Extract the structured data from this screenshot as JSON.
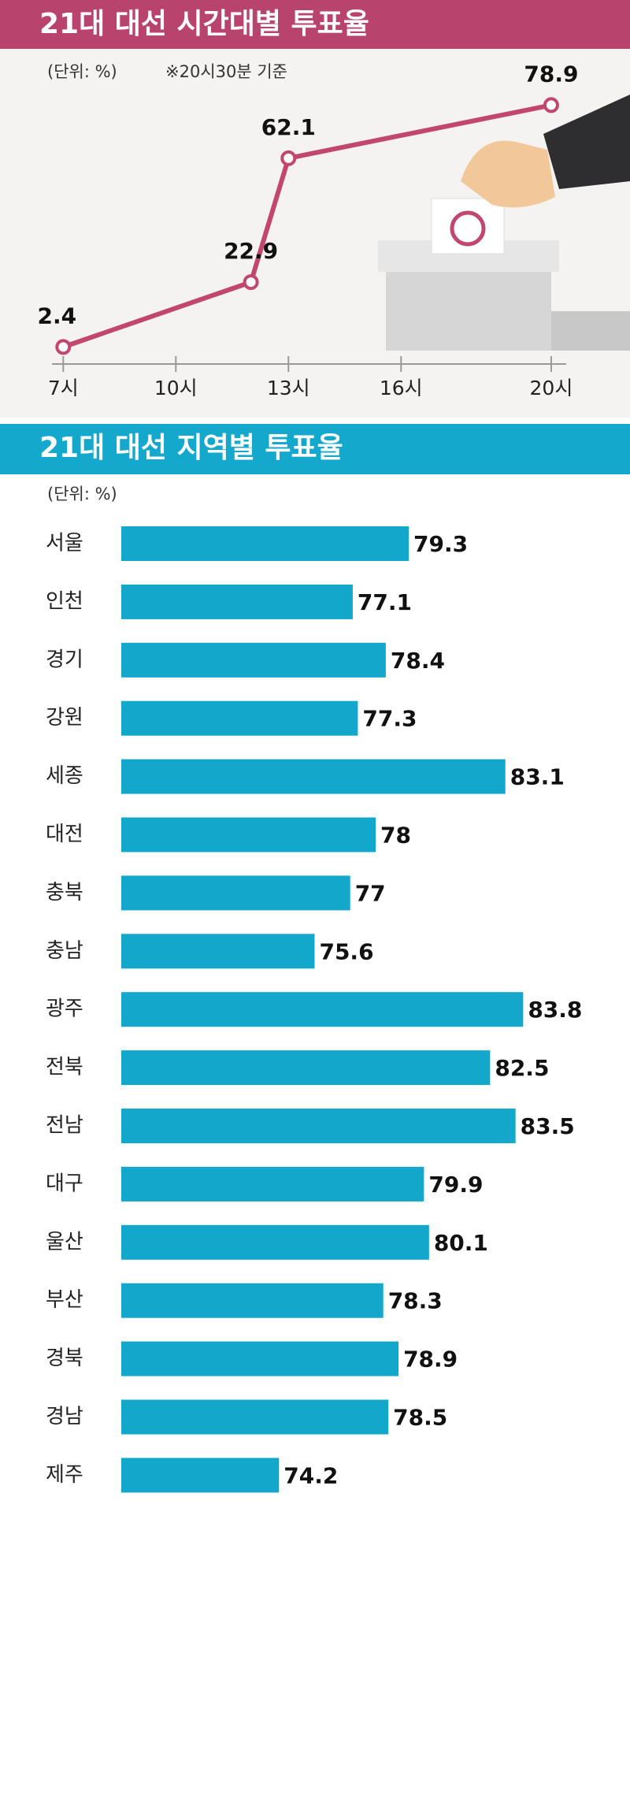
{
  "chart_data": [
    {
      "type": "line",
      "title": "21대 대선 시간대별 투표율",
      "unit_note": "(단위: %)",
      "note": "※20시30분 기준",
      "x": [
        7,
        12,
        13,
        20
      ],
      "values": [
        2.4,
        22.9,
        62.1,
        78.9
      ],
      "color": "#c2476e",
      "xlim": [
        6.7,
        20.4
      ],
      "xticks": [
        {
          "value": 7,
          "label": "7시"
        },
        {
          "value": 10,
          "label": "10시"
        },
        {
          "value": 13,
          "label": "13시"
        },
        {
          "value": 16,
          "label": "16시"
        },
        {
          "value": 20,
          "label": "20시"
        }
      ],
      "ylim": [
        0,
        80
      ]
    },
    {
      "type": "hbar",
      "title": "21대 대선 지역별 투표율",
      "unit_note": "(단위: %)",
      "categories": [
        "서울",
        "인천",
        "경기",
        "강원",
        "세종",
        "대전",
        "충북",
        "충남",
        "광주",
        "전북",
        "전남",
        "대구",
        "울산",
        "부산",
        "경북",
        "경남",
        "제주"
      ],
      "values": [
        79.3,
        77.1,
        78.4,
        77.3,
        83.1,
        78,
        77,
        75.6,
        83.8,
        82.5,
        83.5,
        79.9,
        80.1,
        78.3,
        78.9,
        78.5,
        74.2
      ],
      "color": "#12a7cb",
      "xlim": [
        68,
        88
      ]
    }
  ]
}
